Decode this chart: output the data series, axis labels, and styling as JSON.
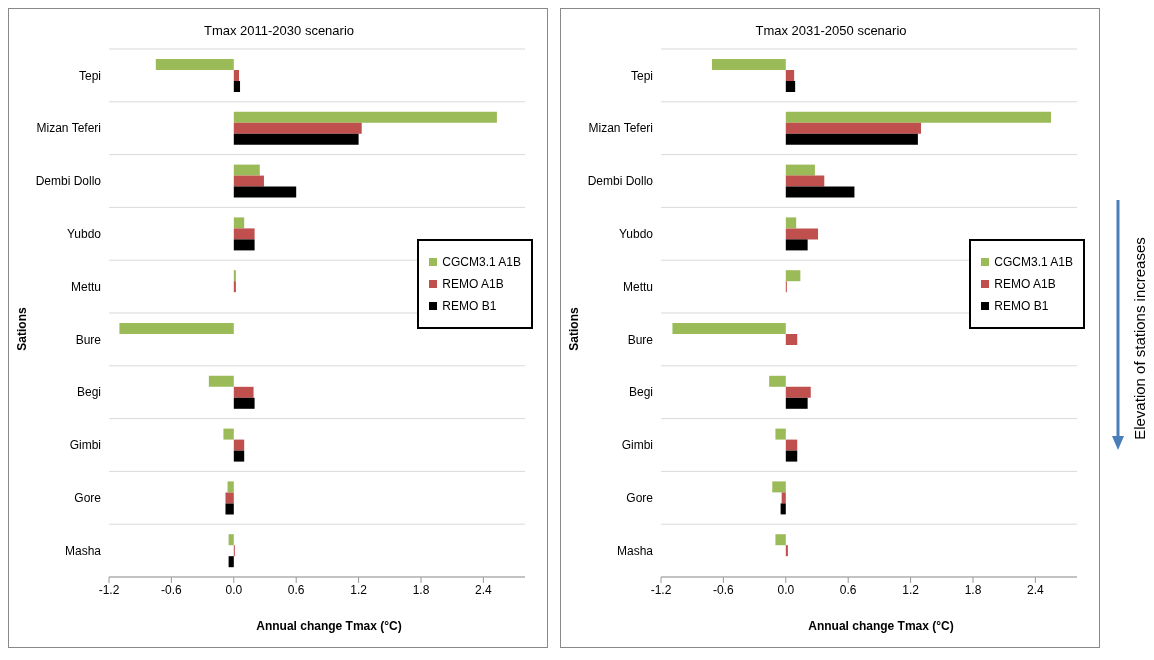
{
  "chart_data": [
    {
      "type": "bar",
      "orientation": "horizontal",
      "title": "Tmax  2011-2030 scenario",
      "xlabel": "Annual change Tmax (°C)",
      "ylabel": "Sations",
      "categories": [
        "Tepi",
        "Mizan Teferi",
        "Dembi Dollo",
        "Yubdo",
        "Mettu",
        "Bure",
        "Begi",
        "Gimbi",
        "Gore",
        "Masha"
      ],
      "series": [
        {
          "name": "CGCM3.1 A1B",
          "color": "#9bbb59",
          "values": [
            -0.75,
            2.53,
            0.25,
            0.1,
            0.02,
            -1.1,
            -0.24,
            -0.1,
            -0.06,
            -0.05
          ]
        },
        {
          "name": "REMO A1B",
          "color": "#c0504d",
          "values": [
            0.05,
            1.23,
            0.29,
            0.2,
            0.02,
            0,
            0.19,
            0.1,
            -0.08,
            0.01
          ]
        },
        {
          "name": "REMO B1",
          "color": "#000000",
          "values": [
            0.06,
            1.2,
            0.6,
            0.2,
            0,
            0,
            0.2,
            0.1,
            -0.08,
            -0.05
          ]
        }
      ],
      "xlim": [
        -1.2,
        2.8
      ],
      "xticks": [
        -1.2,
        -0.6,
        {
          "value": 0,
          "label": "0.0"
        },
        0.6,
        1.2,
        1.8,
        2.4
      ],
      "grid": "y",
      "legend": "right"
    },
    {
      "type": "bar",
      "orientation": "horizontal",
      "title": "Tmax  2031-2050 scenario",
      "xlabel": "Annual change Tmax (°C)",
      "ylabel": "Sations",
      "categories": [
        "Tepi",
        "Mizan Teferi",
        "Dembi Dollo",
        "Yubdo",
        "Mettu",
        "Bure",
        "Begi",
        "Gimbi",
        "Gore",
        "Masha"
      ],
      "series": [
        {
          "name": "CGCM3.1 A1B",
          "color": "#9bbb59",
          "values": [
            -0.71,
            2.55,
            0.28,
            0.1,
            0.14,
            -1.09,
            -0.16,
            -0.1,
            -0.13,
            -0.1
          ]
        },
        {
          "name": "REMO A1B",
          "color": "#c0504d",
          "values": [
            0.08,
            1.3,
            0.37,
            0.31,
            0.01,
            0.11,
            0.24,
            0.11,
            -0.04,
            0.02
          ]
        },
        {
          "name": "REMO B1",
          "color": "#000000",
          "values": [
            0.09,
            1.27,
            0.66,
            0.21,
            0,
            0,
            0.21,
            0.11,
            -0.05,
            0
          ]
        }
      ],
      "xlim": [
        -1.2,
        2.8
      ],
      "xticks": [
        -1.2,
        -0.6,
        {
          "value": 0,
          "label": "0.0"
        },
        0.6,
        1.2,
        1.8,
        2.4
      ],
      "grid": "y",
      "legend": "right",
      "annotations": [
        "Elevation of stations increases"
      ]
    }
  ]
}
